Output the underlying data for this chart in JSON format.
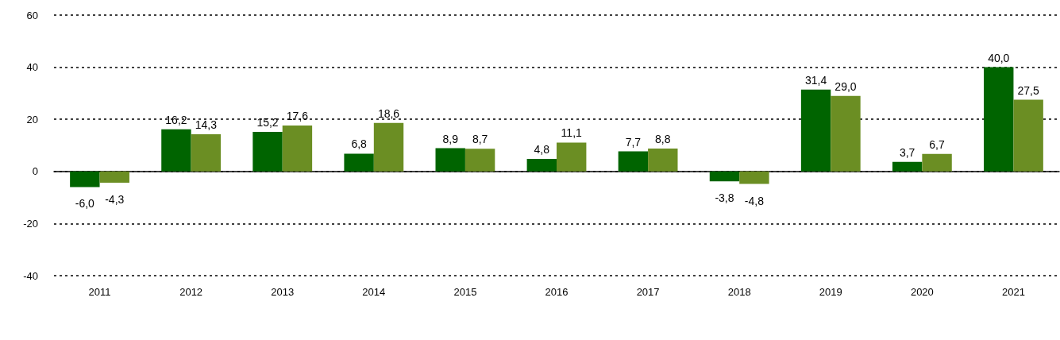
{
  "chart_data": {
    "type": "bar",
    "categories": [
      "2011",
      "2012",
      "2013",
      "2014",
      "2015",
      "2016",
      "2017",
      "2018",
      "2019",
      "2020",
      "2021"
    ],
    "series": [
      {
        "color": "#006400",
        "values": [
          -6.0,
          16.2,
          15.2,
          6.8,
          8.9,
          4.8,
          7.7,
          -3.8,
          31.4,
          3.7,
          40.0
        ],
        "value_labels": [
          "-6,0",
          "16,2",
          "15,2",
          "6,8",
          "8,9",
          "4,8",
          "7,7",
          "-3,8",
          "31,4",
          "3,7",
          "40,0"
        ]
      },
      {
        "color": "#6b8e23",
        "values": [
          -4.3,
          14.3,
          17.6,
          18.6,
          8.7,
          11.1,
          8.8,
          -4.8,
          29.0,
          6.7,
          27.5
        ],
        "value_labels": [
          "-4,3",
          "14,3",
          "17,6",
          "18,6",
          "8,7",
          "11,1",
          "8,8",
          "-4,8",
          "29,0",
          "6,7",
          "27,5"
        ]
      }
    ],
    "ylim": [
      -40,
      60
    ],
    "yticks": [
      -40,
      -20,
      0,
      20,
      40,
      60
    ],
    "grid": "y"
  }
}
